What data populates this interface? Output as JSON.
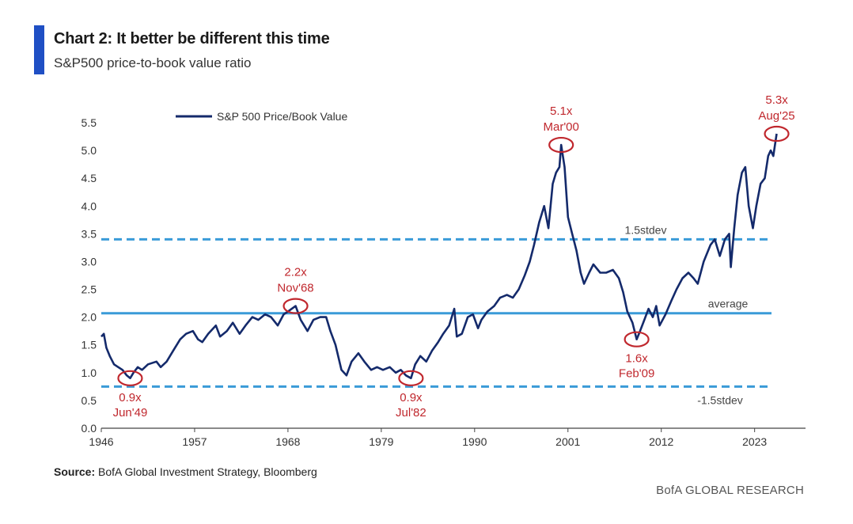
{
  "header": {
    "title": "Chart 2: It better be different this time",
    "subtitle": "S&P500 price-to-book value ratio"
  },
  "footer": {
    "source_label": "Source:",
    "source_text": " BofA Global Investment Strategy, Bloomberg",
    "brand": "BofA GLOBAL RESEARCH"
  },
  "colors": {
    "accent": "#1f4fc4",
    "series": "#142a6b",
    "reference": "#3a9bd8",
    "annotation": "#c0272d"
  },
  "chart_data": {
    "type": "line",
    "xlim": [
      1946,
      2029
    ],
    "ylim": [
      0,
      5.5
    ],
    "x_ticks": [
      "1946",
      "1957",
      "1968",
      "1979",
      "1990",
      "2001",
      "2012",
      "2023"
    ],
    "y_ticks": [
      "0.0",
      "0.5",
      "1.0",
      "1.5",
      "2.0",
      "2.5",
      "3.0",
      "3.5",
      "4.0",
      "4.5",
      "5.0",
      "5.5"
    ],
    "legend_position": "top-left",
    "grid": false,
    "series": [
      {
        "name": "S&P 500 Price/Book Value",
        "x": [
          1946.0,
          1946.3,
          1946.6,
          1947.0,
          1947.5,
          1948.0,
          1948.5,
          1949.0,
          1949.4,
          1949.8,
          1950.3,
          1950.8,
          1951.5,
          1952.5,
          1953.0,
          1953.7,
          1954.5,
          1955.3,
          1956.0,
          1956.8,
          1957.4,
          1957.9,
          1958.6,
          1959.5,
          1960.0,
          1960.8,
          1961.5,
          1962.3,
          1963.0,
          1963.8,
          1964.5,
          1965.3,
          1966.0,
          1966.8,
          1967.5,
          1968.0,
          1968.9,
          1969.5,
          1970.3,
          1971.0,
          1971.8,
          1972.5,
          1973.0,
          1973.6,
          1974.3,
          1974.9,
          1975.5,
          1976.3,
          1977.0,
          1977.8,
          1978.5,
          1979.2,
          1980.0,
          1980.7,
          1981.3,
          1981.9,
          1982.5,
          1983.0,
          1983.6,
          1984.3,
          1985.0,
          1985.7,
          1986.3,
          1987.0,
          1987.6,
          1987.9,
          1988.5,
          1989.2,
          1989.8,
          1990.4,
          1990.8,
          1991.5,
          1992.3,
          1993.0,
          1993.8,
          1994.5,
          1995.2,
          1995.9,
          1996.5,
          1997.0,
          1997.6,
          1998.2,
          1998.7,
          1999.2,
          1999.6,
          2000.0,
          2000.2,
          2000.6,
          2001.0,
          2001.5,
          2002.0,
          2002.5,
          2002.9,
          2003.5,
          2004.0,
          2004.8,
          2005.5,
          2006.3,
          2007.0,
          2007.5,
          2008.0,
          2008.6,
          2009.1,
          2009.5,
          2010.0,
          2010.5,
          2011.0,
          2011.4,
          2011.8,
          2012.5,
          2013.2,
          2013.8,
          2014.5,
          2015.2,
          2015.8,
          2016.3,
          2017.0,
          2017.8,
          2018.3,
          2018.9,
          2019.5,
          2020.0,
          2020.2,
          2020.6,
          2021.0,
          2021.5,
          2021.9,
          2022.3,
          2022.8,
          2023.2,
          2023.7,
          2024.2,
          2024.6,
          2024.9,
          2025.2,
          2025.6
        ],
        "values": [
          1.65,
          1.7,
          1.45,
          1.3,
          1.15,
          1.1,
          1.05,
          0.95,
          0.9,
          1.0,
          1.1,
          1.05,
          1.15,
          1.2,
          1.1,
          1.2,
          1.4,
          1.6,
          1.7,
          1.75,
          1.6,
          1.55,
          1.7,
          1.85,
          1.65,
          1.75,
          1.9,
          1.7,
          1.85,
          2.0,
          1.95,
          2.05,
          2.0,
          1.85,
          2.05,
          2.1,
          2.2,
          1.95,
          1.75,
          1.95,
          2.0,
          2.0,
          1.75,
          1.5,
          1.05,
          0.95,
          1.2,
          1.35,
          1.2,
          1.05,
          1.1,
          1.05,
          1.1,
          1.0,
          1.05,
          0.95,
          0.9,
          1.15,
          1.3,
          1.2,
          1.4,
          1.55,
          1.7,
          1.85,
          2.15,
          1.65,
          1.7,
          2.0,
          2.05,
          1.8,
          1.95,
          2.1,
          2.2,
          2.35,
          2.4,
          2.35,
          2.5,
          2.75,
          3.0,
          3.3,
          3.7,
          4.0,
          3.6,
          4.4,
          4.6,
          4.7,
          5.1,
          4.7,
          3.8,
          3.5,
          3.2,
          2.8,
          2.6,
          2.8,
          2.95,
          2.8,
          2.8,
          2.85,
          2.7,
          2.45,
          2.1,
          1.9,
          1.6,
          1.75,
          1.95,
          2.15,
          2.0,
          2.2,
          1.85,
          2.05,
          2.3,
          2.5,
          2.7,
          2.8,
          2.7,
          2.6,
          3.0,
          3.3,
          3.4,
          3.1,
          3.4,
          3.5,
          2.9,
          3.6,
          4.2,
          4.6,
          4.7,
          4.0,
          3.6,
          4.0,
          4.4,
          4.5,
          4.9,
          5.0,
          4.9,
          5.3
        ]
      }
    ],
    "reference_lines": [
      {
        "value": 3.4,
        "label": "1.5stdev",
        "style": "dashed"
      },
      {
        "value": 2.07,
        "label": "average",
        "style": "solid"
      },
      {
        "value": 0.75,
        "label": "-1.5stdev",
        "style": "dashed"
      }
    ],
    "annotations": [
      {
        "x": 1949.4,
        "y": 0.9,
        "value": "0.9x",
        "date": "Jun'49",
        "label_position": "below"
      },
      {
        "x": 1968.9,
        "y": 2.2,
        "value": "2.2x",
        "date": "Nov'68",
        "label_position": "above"
      },
      {
        "x": 1982.5,
        "y": 0.9,
        "value": "0.9x",
        "date": "Jul'82",
        "label_position": "below"
      },
      {
        "x": 2000.2,
        "y": 5.1,
        "value": "5.1x",
        "date": "Mar'00",
        "label_position": "above"
      },
      {
        "x": 2009.1,
        "y": 1.6,
        "value": "1.6x",
        "date": "Feb'09",
        "label_position": "below"
      },
      {
        "x": 2025.6,
        "y": 5.3,
        "value": "5.3x",
        "date": "Aug'25",
        "label_position": "above"
      }
    ]
  }
}
